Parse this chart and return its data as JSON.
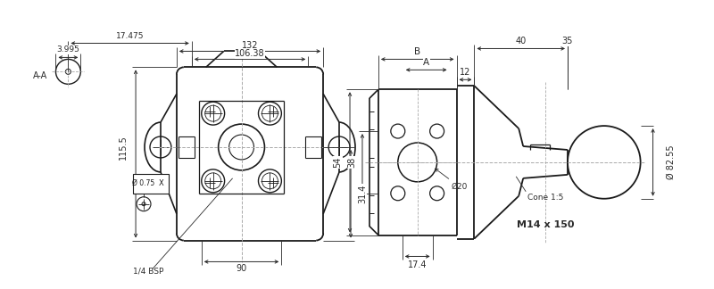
{
  "bg_color": "#ffffff",
  "lc": "#1a1a1a",
  "dc": "#2a2a2a",
  "cc": "#aaaaaa",
  "fig_width": 8.0,
  "fig_height": 3.24,
  "dpi": 100,
  "ann": {
    "d3995": "3.995",
    "d17475": "17.475",
    "d132": "132",
    "d10638": "106.38",
    "d1155": "115.5",
    "d314": "31.4",
    "d075": "Ø 0.75",
    "d90": "90",
    "dbsp": "1/4 BSP",
    "daa": "A-A",
    "dB": "B",
    "dA": "A",
    "d40": "40",
    "d35": "35",
    "d12": "12",
    "d54": "54",
    "d38": "38",
    "dphi20": "Ø20",
    "d174": "17.4",
    "dcone": "Cone 1:5",
    "dphi8255": "Ø 82.55",
    "dM14": "M14 x 150"
  }
}
